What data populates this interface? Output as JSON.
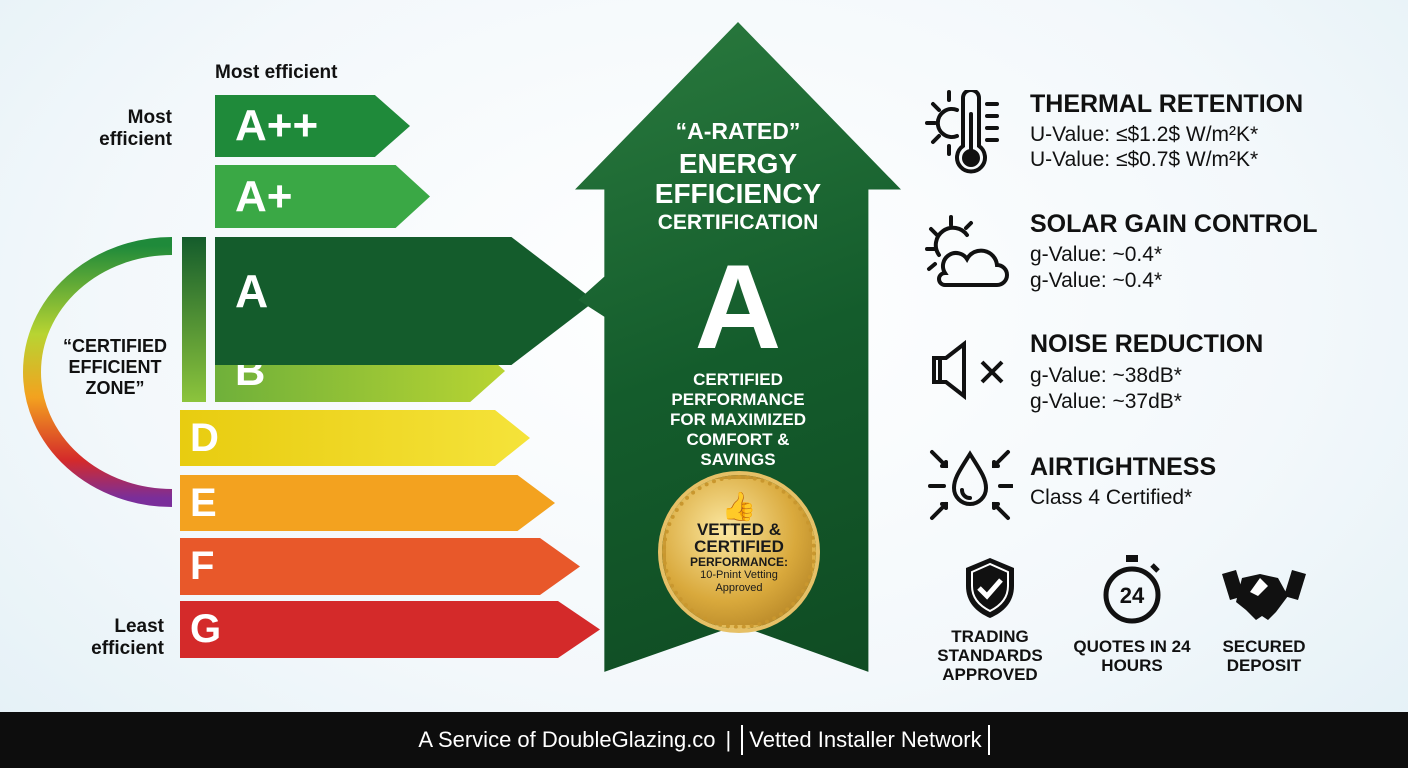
{
  "scale": {
    "top_label": "Most efficient",
    "most_label": "Most efficient",
    "least_label": "Least efficient",
    "zone_label": "“CERTIFIED EFFICIENT ZONE”",
    "ratings": [
      {
        "grade": "A++",
        "color": "#1f8a3a"
      },
      {
        "grade": "A+",
        "color": "#3aa845"
      },
      {
        "grade": "A",
        "color": "#145c2c"
      },
      {
        "grade": "B",
        "color": "#8cc43c"
      },
      {
        "grade": "D",
        "color": "#f0d81c"
      },
      {
        "grade": "E",
        "color": "#f3a21f"
      },
      {
        "grade": "F",
        "color": "#e8582a"
      },
      {
        "grade": "G",
        "color": "#d42a2a"
      }
    ]
  },
  "arrow": {
    "title1": "“A-RATED”",
    "title2": "ENERGY",
    "title3": "EFFICIENCY",
    "title4": "CERTIFICATION",
    "grade": "A",
    "subtitle": "CERTIFIED PERFORMANCE FOR MAXIMIZED COMFORT & SAVINGS",
    "seal": {
      "line1": "VETTED &",
      "line2": "CERTIFIED",
      "line3": "PERFORMANCE:",
      "line4": "10-Pnint Vetting",
      "line5": "Approved"
    }
  },
  "features": [
    {
      "icon": "thermometer-sun-icon",
      "title": "THERMAL RETENTION",
      "lines": [
        "U-Value: ≤$1.2$ W/m²K*",
        "U-Value: ≤$0.7$ W/m²K*"
      ]
    },
    {
      "icon": "sun-cloud-icon",
      "title": "SOLAR GAIN CONTROL",
      "lines": [
        "g-Value: ~0.4*",
        "g-Value: ~0.4*"
      ]
    },
    {
      "icon": "speaker-mute-icon",
      "title": "NOISE REDUCTION",
      "lines": [
        "g-Value: ~38dB*",
        "g-Value: ~37dB*"
      ]
    },
    {
      "icon": "droplet-arrows-icon",
      "title": "AIRTIGHTNESS",
      "lines": [
        "Class 4 Certified*"
      ]
    }
  ],
  "badges": [
    {
      "icon": "shield-check-icon",
      "label": "TRADING STANDARDS APPROVED"
    },
    {
      "icon": "stopwatch-icon",
      "label": "QUOTES IN 24 HOURS",
      "number": "24"
    },
    {
      "icon": "handshake-icon",
      "label": "SECURED DEPOSIT"
    }
  ],
  "footer": {
    "left": "A Service of DoubleGlazing.co",
    "sep": "|",
    "right": "Vetted Installer Network"
  }
}
